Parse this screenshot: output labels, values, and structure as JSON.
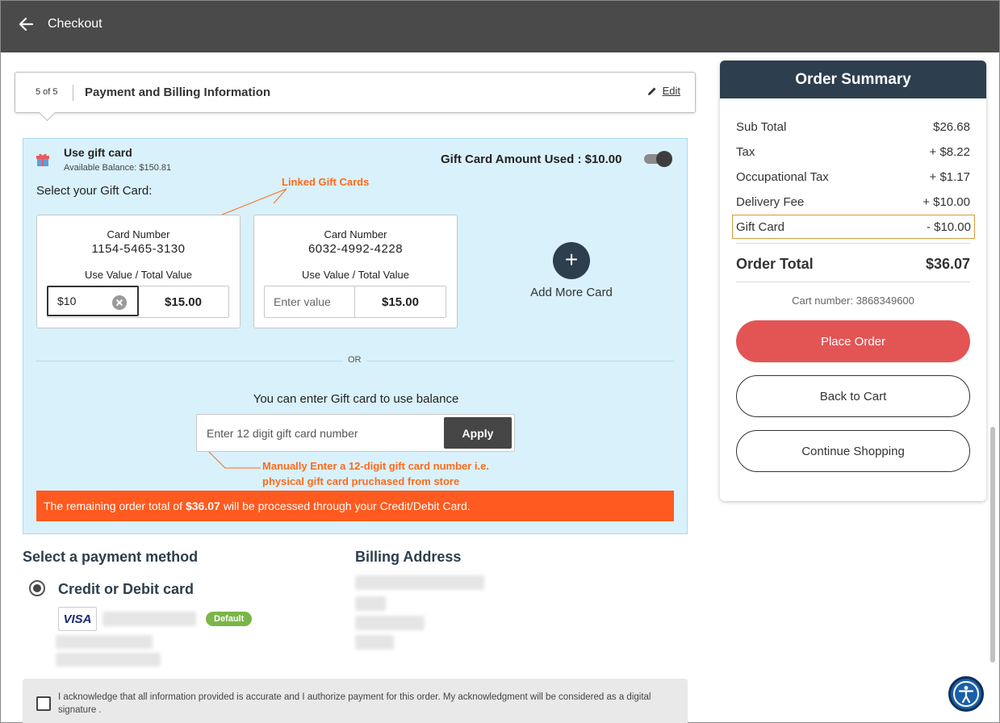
{
  "header": {
    "title": "Checkout"
  },
  "step": {
    "count": "5 of 5",
    "title": "Payment and Billing Information",
    "edit_label": "Edit"
  },
  "gift": {
    "title": "Use gift card",
    "balance": "Available Balance: $150.81",
    "amount_used": "Gift Card Amount Used : $10.00",
    "toggle_on": true,
    "select_label": "Select your Gift Card:",
    "annotation_linked": "Linked Gift Cards",
    "cards": [
      {
        "number_label": "Card Number",
        "number": "1154-5465-3130",
        "use_label": "Use Value / Total Value",
        "use_value": "$10",
        "total": "$15.00"
      },
      {
        "number_label": "Card Number",
        "number": "6032-4992-4228",
        "use_label": "Use Value / Total Value",
        "use_placeholder": "Enter value",
        "total": "$15.00"
      }
    ],
    "add_more_label": "Add More Card",
    "or_label": "OR",
    "enter_label": "You can enter Gift card to use balance",
    "input_placeholder": "Enter 12 digit gift card number",
    "apply_label": "Apply",
    "annotation_manual_1": "Manually Enter a 12-digit gift card number i.e.",
    "annotation_manual_2": "physical gift card pruchased from store",
    "remaining_prefix": "The remaining order total of",
    "remaining_amount": "$36.07",
    "remaining_suffix": "will be processed through your Credit/Debit Card."
  },
  "payment": {
    "title": "Select a payment method",
    "method_label": "Credit or Debit card",
    "card_brand": "VISA",
    "default_badge": "Default"
  },
  "billing": {
    "title": "Billing Address"
  },
  "ack": {
    "text": "I acknowledge that all information provided is accurate and I authorize payment for this order. My acknowledgment will be considered as a digital signature ."
  },
  "summary": {
    "title": "Order Summary",
    "rows": [
      {
        "label": "Sub Total",
        "value": "$26.68"
      },
      {
        "label": "Tax",
        "value": "+ $8.22"
      },
      {
        "label": "Occupational Tax",
        "value": "+ $1.17"
      },
      {
        "label": "Delivery Fee",
        "value": "+ $10.00"
      },
      {
        "label": "Gift Card",
        "value": "- $10.00"
      }
    ],
    "total_label": "Order Total",
    "total_value": "$36.07",
    "cart_number": "Cart number: 3868349600",
    "place_order": "Place Order",
    "back_to_cart": "Back to Cart",
    "continue_shopping": "Continue Shopping"
  },
  "colors": {
    "header_bg": "#4a4a4a",
    "navy": "#2d3e4e",
    "gift_panel_bg": "#d9f1fb",
    "accent_orange": "#ff5a1f",
    "place_order_red": "#e35555",
    "default_green": "#7ab648"
  }
}
